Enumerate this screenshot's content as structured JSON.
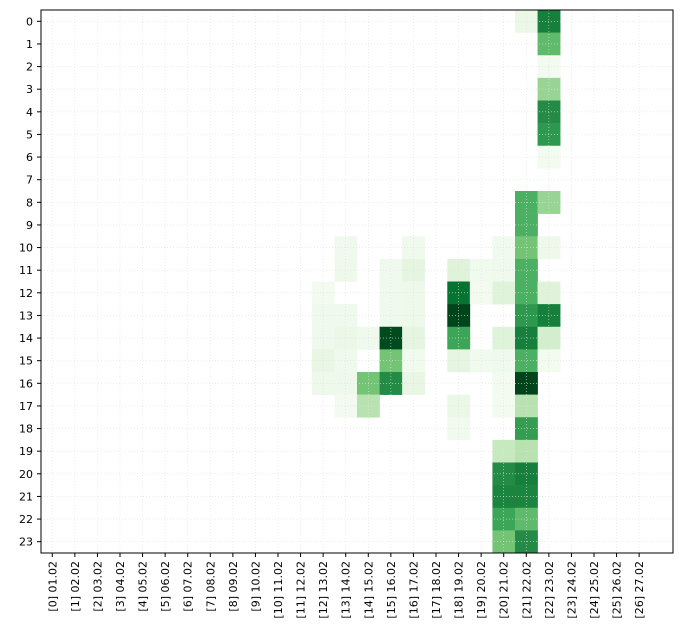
{
  "chart_data": {
    "type": "heatmap",
    "colormap": "Greens",
    "grid": true,
    "categories": [
      "[0] 01.02",
      "[1] 02.02",
      "[2] 03.02",
      "[3] 04.02",
      "[4] 05.02",
      "[5] 06.02",
      "[6] 07.02",
      "[7] 08.02",
      "[8] 09.02",
      "[9] 10.02",
      "[10] 11.02",
      "[11] 12.02",
      "[12] 13.02",
      "[13] 14.02",
      "[14] 15.02",
      "[15] 16.02",
      "[16] 17.02",
      "[17] 18.02",
      "[18] 19.02",
      "[19] 20.02",
      "[20] 21.02",
      "[21] 22.02",
      "[22] 23.02",
      "[23] 24.02",
      "[24] 25.02",
      "[25] 26.02",
      "[26] 27.02"
    ],
    "xlim": [
      -0.5,
      27.5
    ],
    "ylim": [
      23.5,
      -0.5
    ],
    "yticks": [
      0,
      1,
      2,
      3,
      4,
      5,
      6,
      7,
      8,
      9,
      10,
      11,
      12,
      13,
      14,
      15,
      16,
      17,
      18,
      19,
      20,
      21,
      22,
      23
    ],
    "values": [
      [
        0,
        0,
        0,
        0,
        0,
        0,
        0,
        0,
        0,
        0,
        0,
        0,
        0,
        0,
        0,
        0,
        0,
        0,
        0,
        0,
        0,
        8,
        80,
        0,
        0,
        0,
        0
      ],
      [
        0,
        0,
        0,
        0,
        0,
        0,
        0,
        0,
        0,
        0,
        0,
        0,
        0,
        0,
        0,
        0,
        0,
        0,
        0,
        0,
        0,
        0,
        55,
        0,
        0,
        0,
        0
      ],
      [
        0,
        0,
        0,
        0,
        0,
        0,
        0,
        0,
        0,
        0,
        0,
        0,
        0,
        0,
        0,
        0,
        0,
        0,
        0,
        0,
        0,
        0,
        3,
        0,
        0,
        0,
        0
      ],
      [
        0,
        0,
        0,
        0,
        0,
        0,
        0,
        0,
        0,
        0,
        0,
        0,
        0,
        0,
        0,
        0,
        0,
        0,
        0,
        0,
        0,
        0,
        40,
        0,
        0,
        0,
        0
      ],
      [
        0,
        0,
        0,
        0,
        0,
        0,
        0,
        0,
        0,
        0,
        0,
        0,
        0,
        0,
        0,
        0,
        0,
        0,
        0,
        0,
        0,
        0,
        75,
        0,
        0,
        0,
        0
      ],
      [
        0,
        0,
        0,
        0,
        0,
        0,
        0,
        0,
        0,
        0,
        0,
        0,
        0,
        0,
        0,
        0,
        0,
        0,
        0,
        0,
        0,
        0,
        70,
        0,
        0,
        0,
        0
      ],
      [
        0,
        0,
        0,
        0,
        0,
        0,
        0,
        0,
        0,
        0,
        0,
        0,
        0,
        0,
        0,
        0,
        0,
        0,
        0,
        0,
        0,
        0,
        3,
        0,
        0,
        0,
        0
      ],
      [
        0,
        0,
        0,
        0,
        0,
        0,
        0,
        0,
        0,
        0,
        0,
        0,
        0,
        0,
        0,
        0,
        0,
        0,
        0,
        0,
        0,
        0,
        0,
        0,
        0,
        0,
        0
      ],
      [
        0,
        0,
        0,
        0,
        0,
        0,
        0,
        0,
        0,
        0,
        0,
        0,
        0,
        0,
        0,
        0,
        0,
        0,
        0,
        0,
        0,
        60,
        40,
        0,
        0,
        0,
        0
      ],
      [
        0,
        0,
        0,
        0,
        0,
        0,
        0,
        0,
        0,
        0,
        0,
        0,
        0,
        0,
        0,
        0,
        0,
        0,
        0,
        0,
        0,
        60,
        0,
        0,
        0,
        0,
        0
      ],
      [
        0,
        0,
        0,
        0,
        0,
        0,
        0,
        0,
        0,
        0,
        0,
        0,
        0,
        5,
        0,
        0,
        5,
        0,
        0,
        0,
        4,
        50,
        6,
        0,
        0,
        0,
        0
      ],
      [
        0,
        0,
        0,
        0,
        0,
        0,
        0,
        0,
        0,
        0,
        0,
        0,
        0,
        6,
        0,
        5,
        12,
        0,
        15,
        4,
        5,
        60,
        0,
        0,
        0,
        0,
        0
      ],
      [
        0,
        0,
        0,
        0,
        0,
        0,
        0,
        0,
        0,
        0,
        0,
        0,
        3,
        0,
        0,
        5,
        6,
        0,
        85,
        3,
        15,
        60,
        15,
        0,
        0,
        0,
        0
      ],
      [
        0,
        0,
        0,
        0,
        0,
        0,
        0,
        0,
        0,
        0,
        0,
        0,
        5,
        5,
        0,
        5,
        6,
        0,
        100,
        0,
        0,
        70,
        80,
        0,
        0,
        0,
        0
      ],
      [
        0,
        0,
        0,
        0,
        0,
        0,
        0,
        0,
        0,
        0,
        0,
        0,
        5,
        8,
        5,
        98,
        12,
        0,
        65,
        0,
        15,
        80,
        20,
        0,
        0,
        0,
        0
      ],
      [
        0,
        0,
        0,
        0,
        0,
        0,
        0,
        0,
        0,
        0,
        0,
        0,
        10,
        5,
        0,
        50,
        4,
        0,
        12,
        4,
        5,
        60,
        3,
        0,
        0,
        0,
        0
      ],
      [
        0,
        0,
        0,
        0,
        0,
        0,
        0,
        0,
        0,
        0,
        0,
        0,
        6,
        6,
        50,
        75,
        10,
        0,
        0,
        0,
        3,
        100,
        0,
        0,
        0,
        0,
        0
      ],
      [
        0,
        0,
        0,
        0,
        0,
        0,
        0,
        0,
        0,
        0,
        0,
        0,
        0,
        3,
        30,
        0,
        0,
        0,
        8,
        0,
        3,
        30,
        0,
        0,
        0,
        0,
        0
      ],
      [
        0,
        0,
        0,
        0,
        0,
        0,
        0,
        0,
        0,
        0,
        0,
        0,
        0,
        0,
        0,
        0,
        0,
        0,
        4,
        0,
        0,
        68,
        0,
        0,
        0,
        0,
        0
      ],
      [
        0,
        0,
        0,
        0,
        0,
        0,
        0,
        0,
        0,
        0,
        0,
        0,
        0,
        0,
        0,
        0,
        0,
        0,
        0,
        0,
        25,
        30,
        0,
        0,
        0,
        0,
        0
      ],
      [
        0,
        0,
        0,
        0,
        0,
        0,
        0,
        0,
        0,
        0,
        0,
        0,
        0,
        0,
        0,
        0,
        0,
        0,
        0,
        0,
        75,
        80,
        0,
        0,
        0,
        0,
        0
      ],
      [
        0,
        0,
        0,
        0,
        0,
        0,
        0,
        0,
        0,
        0,
        0,
        0,
        0,
        0,
        0,
        0,
        0,
        0,
        0,
        0,
        78,
        78,
        0,
        0,
        0,
        0,
        0
      ],
      [
        0,
        0,
        0,
        0,
        0,
        0,
        0,
        0,
        0,
        0,
        0,
        0,
        0,
        0,
        0,
        0,
        0,
        0,
        0,
        0,
        65,
        55,
        0,
        0,
        0,
        0,
        0
      ],
      [
        0,
        0,
        0,
        0,
        0,
        0,
        0,
        0,
        0,
        0,
        0,
        0,
        0,
        0,
        0,
        0,
        0,
        0,
        0,
        0,
        50,
        75,
        0,
        0,
        0,
        0,
        0
      ]
    ]
  }
}
